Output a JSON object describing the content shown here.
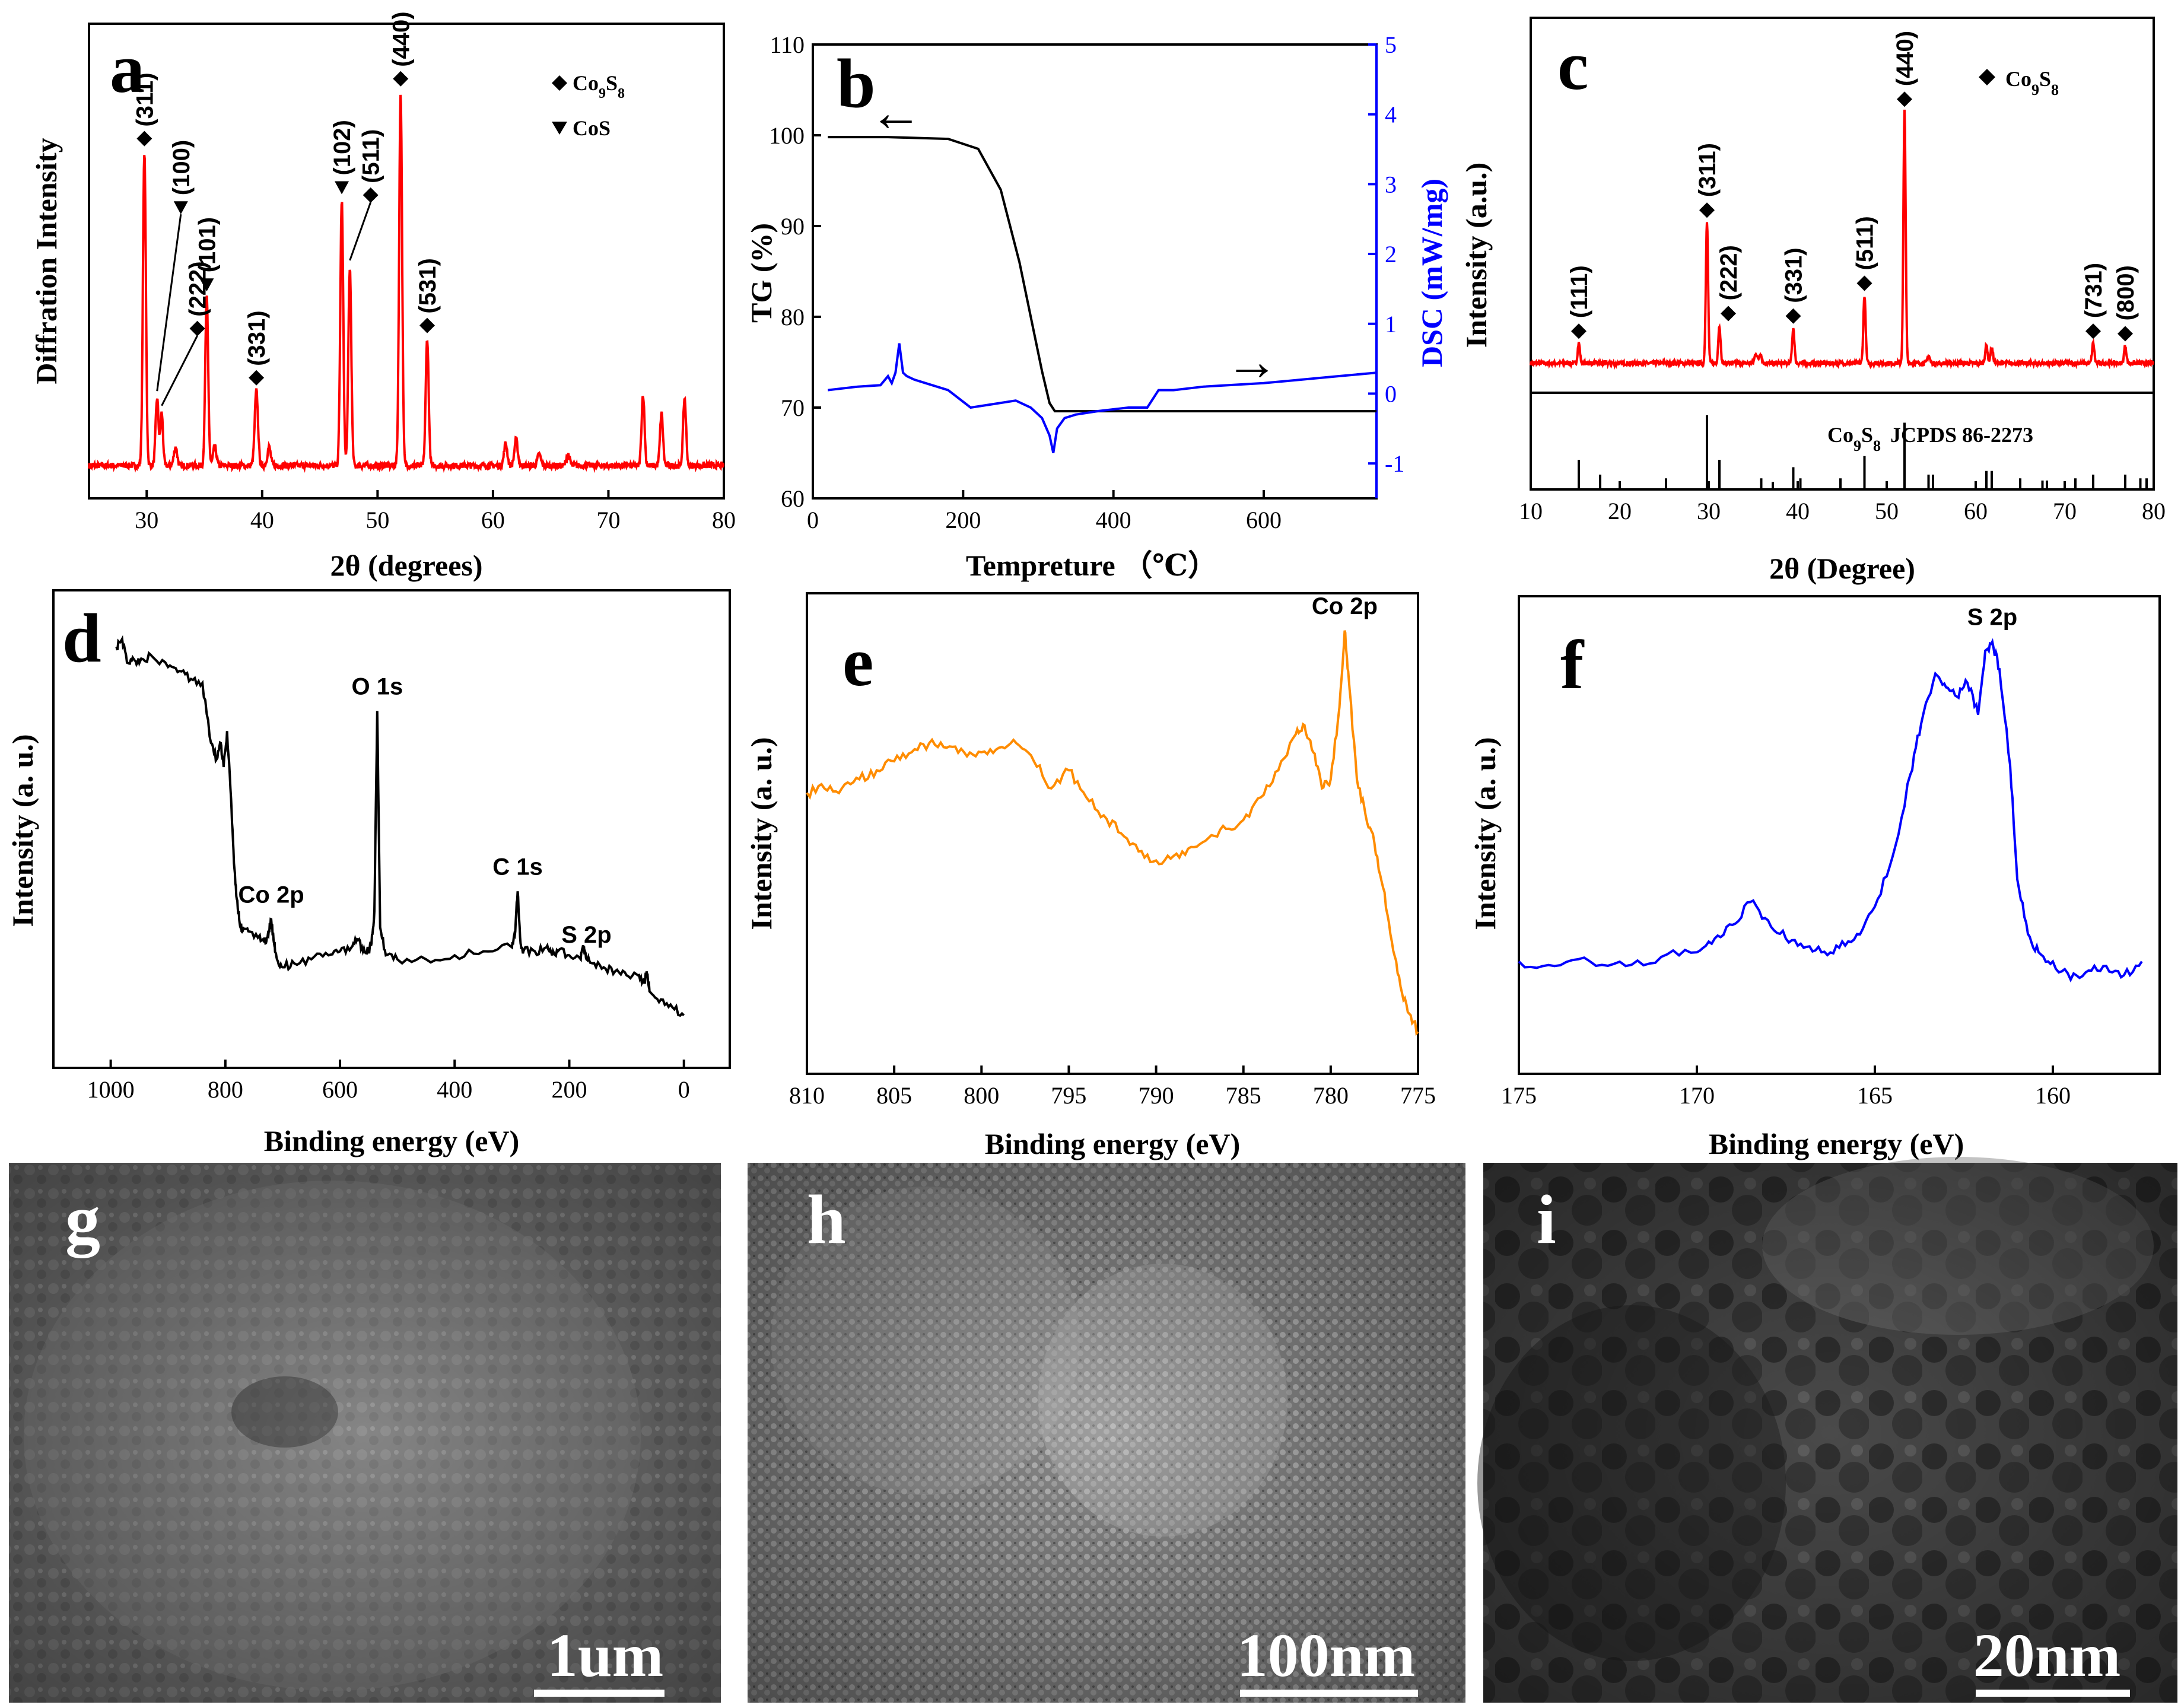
{
  "chart_data": [
    {
      "id": "a",
      "type": "line",
      "panel_label": "a",
      "xlabel": "2θ (degrees)",
      "ylabel": "Diffration Intensity",
      "xlim": [
        25,
        80
      ],
      "xticks": [
        30,
        40,
        50,
        60,
        70,
        80
      ],
      "xtick_labels": [
        "30",
        "40",
        "50",
        "60",
        "70",
        "80"
      ],
      "ylim": [
        0,
        100
      ],
      "series": [
        {
          "name": "XRD",
          "color": "#ff0000",
          "baseline": 4,
          "peaks": [
            [
              29.8,
              84,
              0.18
            ],
            [
              30.9,
              18,
              0.18
            ],
            [
              31.3,
              14,
              0.16
            ],
            [
              32.5,
              5,
              0.2
            ],
            [
              35.2,
              45,
              0.18
            ],
            [
              35.9,
              5,
              0.2
            ],
            [
              39.5,
              20,
              0.2
            ],
            [
              40.6,
              5,
              0.2
            ],
            [
              46.9,
              71,
              0.18
            ],
            [
              47.6,
              53,
              0.18
            ],
            [
              52.0,
              100,
              0.18
            ],
            [
              54.3,
              34,
              0.18
            ],
            [
              61.1,
              6,
              0.2
            ],
            [
              62.0,
              7,
              0.2
            ],
            [
              64.0,
              3,
              0.2
            ],
            [
              66.5,
              3,
              0.2
            ],
            [
              73.0,
              19,
              0.18
            ],
            [
              74.6,
              14,
              0.18
            ],
            [
              76.6,
              18,
              0.18
            ]
          ]
        }
      ],
      "annotations": [
        {
          "text": "(311)",
          "x": 29.8,
          "marker": "diamond"
        },
        {
          "text": "(100)",
          "x": 30.9,
          "marker": "triangle"
        },
        {
          "text": "(222)",
          "x": 31.3,
          "marker": "diamond"
        },
        {
          "text": "(101)",
          "x": 35.2,
          "marker": "triangle"
        },
        {
          "text": "(331)",
          "x": 39.5,
          "marker": "diamond"
        },
        {
          "text": "(102)",
          "x": 46.9,
          "marker": "triangle"
        },
        {
          "text": "(511)",
          "x": 47.6,
          "marker": "diamond"
        },
        {
          "text": "(440)",
          "x": 52.0,
          "marker": "diamond"
        },
        {
          "text": "(531)",
          "x": 54.3,
          "marker": "diamond"
        }
      ],
      "legend": [
        {
          "marker": "diamond",
          "label": "Co",
          "sub1": "9",
          "mid": "S",
          "sub2": "8"
        },
        {
          "marker": "triangle",
          "label": "CoS"
        }
      ]
    },
    {
      "id": "b",
      "type": "line",
      "panel_label": "b",
      "xlabel": "Tempreture （℃）",
      "ylabel": "TG (%)",
      "y2label": "DSC (mW/mg)",
      "xlim": [
        0,
        750
      ],
      "xticks": [
        0,
        200,
        400,
        600
      ],
      "xtick_labels": [
        "0",
        "200",
        "400",
        "600"
      ],
      "ylim": [
        60,
        110
      ],
      "yticks": [
        60,
        70,
        80,
        90,
        100,
        110
      ],
      "ytick_labels": [
        "60",
        "70",
        "80",
        "90",
        "100",
        "110"
      ],
      "y2lim": [
        -1.5,
        5
      ],
      "y2ticks": [
        -1,
        0,
        1,
        2,
        3,
        4,
        5
      ],
      "y2tick_labels": [
        "-1",
        "0",
        "1",
        "2",
        "3",
        "4",
        "5"
      ],
      "series": [
        {
          "name": "TG",
          "axis": "left",
          "color": "#000000",
          "x": [
            20,
            100,
            180,
            220,
            250,
            275,
            290,
            305,
            315,
            322,
            340,
            400,
            500,
            600,
            750
          ],
          "y": [
            99.8,
            99.8,
            99.6,
            98.5,
            94,
            86,
            80,
            74,
            70.5,
            69.6,
            69.6,
            69.6,
            69.6,
            69.6,
            69.6
          ]
        },
        {
          "name": "DSC",
          "axis": "right",
          "color": "#0000ff",
          "x": [
            20,
            60,
            90,
            100,
            105,
            110,
            115,
            120,
            125,
            135,
            150,
            180,
            210,
            240,
            270,
            290,
            305,
            315,
            320,
            325,
            335,
            350,
            380,
            420,
            445,
            460,
            480,
            520,
            600,
            700,
            750
          ],
          "y": [
            0.05,
            0.1,
            0.12,
            0.25,
            0.15,
            0.3,
            0.72,
            0.3,
            0.25,
            0.2,
            0.15,
            0.05,
            -0.2,
            -0.15,
            -0.1,
            -0.2,
            -0.35,
            -0.6,
            -0.85,
            -0.5,
            -0.35,
            -0.3,
            -0.25,
            -0.2,
            -0.2,
            0.05,
            0.05,
            0.1,
            0.15,
            0.25,
            0.3
          ]
        }
      ],
      "annotations": [
        {
          "text": "←",
          "target": "TG"
        },
        {
          "text": "→",
          "target": "DSC"
        }
      ]
    },
    {
      "id": "c",
      "type": "line",
      "panel_label": "c",
      "xlabel": "2θ (Degree)",
      "ylabel": "Intensity (a.u.)",
      "xlim": [
        10,
        80
      ],
      "xticks": [
        10,
        20,
        30,
        40,
        50,
        60,
        70,
        80
      ],
      "xtick_labels": [
        "10",
        "20",
        "30",
        "40",
        "50",
        "60",
        "70",
        "80"
      ],
      "ylim": [
        0,
        100
      ],
      "series": [
        {
          "name": "XRD",
          "color": "#ff0000",
          "baseline": 3,
          "peaks": [
            [
              15.4,
              8,
              0.18
            ],
            [
              29.8,
              56,
              0.18
            ],
            [
              31.2,
              15,
              0.18
            ],
            [
              35.3,
              4,
              0.2
            ],
            [
              35.8,
              4,
              0.2
            ],
            [
              39.5,
              14,
              0.18
            ],
            [
              47.5,
              27,
              0.18
            ],
            [
              52.0,
              100,
              0.18
            ],
            [
              54.7,
              3,
              0.2
            ],
            [
              61.2,
              7,
              0.2
            ],
            [
              61.8,
              6,
              0.2
            ],
            [
              73.2,
              8,
              0.18
            ],
            [
              76.8,
              7,
              0.18
            ]
          ]
        }
      ],
      "reference": {
        "label": "JCPDS 86-2273",
        "formula": {
          "label": "Co",
          "sub1": "9",
          "mid": "S",
          "sub2": "8"
        },
        "positions": [
          15.4,
          17.8,
          25.2,
          29.8,
          31.2,
          35.9,
          37.2,
          39.5,
          40.3,
          44.8,
          47.5,
          52.0,
          54.7,
          55.2,
          61.2,
          61.8,
          65.0,
          67.5,
          68.0,
          71.2,
          73.2,
          76.8,
          78.5,
          79.2
        ],
        "heights": [
          0.4,
          0.2,
          0.15,
          1.0,
          0.4,
          0.15,
          0.1,
          0.3,
          0.15,
          0.15,
          0.45,
          0.9,
          0.2,
          0.2,
          0.25,
          0.25,
          0.15,
          0.12,
          0.12,
          0.15,
          0.2,
          0.2,
          0.15,
          0.15
        ]
      },
      "annotations": [
        {
          "text": "(111)",
          "x": 15.4
        },
        {
          "text": "(311)",
          "x": 29.8
        },
        {
          "text": "(222)",
          "x": 31.2
        },
        {
          "text": "(331)",
          "x": 39.5
        },
        {
          "text": "(511)",
          "x": 47.5
        },
        {
          "text": "(440)",
          "x": 52.0
        },
        {
          "text": "(731)",
          "x": 73.2
        },
        {
          "text": "(800)",
          "x": 76.8
        }
      ],
      "legend": [
        {
          "marker": "diamond",
          "label": "Co",
          "sub1": "9",
          "mid": "S",
          "sub2": "8"
        }
      ]
    },
    {
      "id": "d",
      "type": "line",
      "panel_label": "d",
      "xlabel": "Binding energy (eV)",
      "ylabel": "Intensity (a. u.)",
      "xlim": [
        1100,
        -80
      ],
      "xticks": [
        1000,
        800,
        600,
        400,
        200,
        0
      ],
      "xtick_labels": [
        "1000",
        "800",
        "600",
        "400",
        "200",
        "0"
      ],
      "ylim": [
        0,
        100
      ],
      "series": [
        {
          "name": "XPS survey",
          "color": "#000000",
          "x": [
            990,
            980,
            970,
            960,
            950,
            930,
            900,
            880,
            860,
            840,
            825,
            815,
            808,
            803,
            797,
            790,
            785,
            780,
            775,
            770,
            760,
            740,
            730,
            725,
            720,
            715,
            710,
            700,
            680,
            650,
            620,
            600,
            580,
            570,
            560,
            550,
            545,
            540,
            535,
            530,
            520,
            500,
            450,
            400,
            350,
            300,
            295,
            290,
            285,
            280,
            260,
            240,
            230,
            220,
            200,
            180,
            175,
            170,
            160,
            140,
            120,
            100,
            80,
            70,
            65,
            60,
            40,
            20,
            0
          ],
          "y": [
            94,
            96,
            90,
            91,
            90,
            92,
            89,
            88,
            86,
            85,
            70,
            66,
            70,
            64,
            73,
            56,
            40,
            31,
            25,
            23,
            23,
            22,
            20,
            22,
            26,
            20,
            16,
            14,
            15,
            16,
            17,
            18,
            19,
            21,
            18,
            18,
            20,
            28,
            78,
            24,
            17,
            16,
            16,
            17,
            18,
            19,
            22,
            33,
            20,
            18,
            18,
            19,
            17,
            18,
            17,
            16,
            19,
            16,
            15,
            14,
            13,
            12,
            12,
            10,
            13,
            8,
            6,
            4,
            2
          ]
        }
      ],
      "annotations": [
        {
          "text": "Co 2p",
          "x": 720
        },
        {
          "text": "O 1s",
          "x": 535
        },
        {
          "text": "C 1s",
          "x": 290
        },
        {
          "text": "S 2p",
          "x": 170
        }
      ]
    },
    {
      "id": "e",
      "type": "line",
      "panel_label": "e",
      "xlabel": "Binding energy (eV)",
      "ylabel": "Intensity (a. u.)",
      "xlim": [
        810,
        775
      ],
      "xticks": [
        810,
        805,
        800,
        795,
        790,
        785,
        780,
        775
      ],
      "xtick_labels": [
        "810",
        "805",
        "800",
        "795",
        "790",
        "785",
        "780",
        "775"
      ],
      "ylim": [
        0,
        100
      ],
      "series": [
        {
          "name": "Co 2p",
          "color": "#ff8c00",
          "x": [
            810,
            809,
            808,
            807,
            806,
            805,
            804,
            803,
            802,
            801,
            800,
            799,
            798,
            797,
            796,
            795,
            794,
            793,
            792,
            791,
            790,
            789,
            788,
            787,
            786,
            785,
            784,
            783,
            782,
            781.5,
            781,
            780.5,
            780,
            779.5,
            779.2,
            779,
            778.5,
            778,
            777.5,
            777,
            776.5,
            776,
            775.5,
            775
          ],
          "y": [
            61,
            62,
            62,
            64,
            66,
            68,
            70,
            72,
            71,
            70,
            70,
            71,
            72,
            68,
            62,
            66,
            60,
            56,
            52,
            48,
            46,
            47,
            49,
            51,
            53,
            55,
            60,
            66,
            74,
            76,
            70,
            62,
            64,
            80,
            97,
            88,
            64,
            56,
            50,
            40,
            28,
            18,
            12,
            8
          ]
        }
      ],
      "annotations": [
        {
          "text": "Co 2p",
          "x": 779.2
        }
      ]
    },
    {
      "id": "f",
      "type": "line",
      "panel_label": "f",
      "xlabel": "Binding energy (eV)",
      "ylabel": "Intensity (a. u.)",
      "xlim": [
        175,
        157
      ],
      "xticks": [
        175,
        170,
        165,
        160
      ],
      "xtick_labels": [
        "175",
        "170",
        "165",
        "160"
      ],
      "ylim": [
        0,
        100
      ],
      "series": [
        {
          "name": "S 2p",
          "color": "#0000ff",
          "x": [
            175,
            174,
            173,
            172,
            171,
            170,
            169.5,
            169,
            168.5,
            168,
            167.5,
            167,
            166.5,
            166,
            165.5,
            165,
            164.5,
            164,
            163.7,
            163.3,
            163,
            162.7,
            162.4,
            162.1,
            161.9,
            161.7,
            161.5,
            161.2,
            161,
            160.7,
            160.4,
            160,
            159.5,
            159,
            158.5,
            158,
            157.5
          ],
          "y": [
            22,
            21,
            22,
            21,
            23,
            24,
            27,
            30,
            35,
            31,
            27,
            25,
            24,
            25,
            28,
            34,
            45,
            63,
            74,
            85,
            82,
            80,
            83,
            76,
            90,
            92,
            86,
            65,
            40,
            28,
            24,
            22,
            18,
            20,
            21,
            19,
            22
          ]
        }
      ],
      "annotations": [
        {
          "text": "S 2p",
          "x": 161.7
        }
      ]
    }
  ],
  "micrographs": {
    "g": {
      "label": "g",
      "scalebar": "1um"
    },
    "h": {
      "label": "h",
      "scalebar": "100nm"
    },
    "i": {
      "label": "i",
      "scalebar": "20nm"
    }
  },
  "text": {
    "c_formula": "Co",
    "c_sub1": "9",
    "c_S": "S",
    "c_sub2": "8",
    "c_ref_label": "JCPDS 86-2273",
    "leg_co": "Co",
    "leg_9": "9",
    "leg_s": "S",
    "leg_8": "8",
    "leg_cos": "CoS",
    "a_label": "a",
    "b_label": "b",
    "c_label": "c",
    "d_label": "d",
    "e_label": "e",
    "f_label": "f",
    "a_xlabel": "2θ (degrees)",
    "a_ylabel": "Diffration Intensity",
    "b_xlabel": "Tempreture （℃）",
    "b_ylabel": "TG (%)",
    "b_y2label": "DSC (mW/mg)",
    "c_xlabel": "2θ (Degree)",
    "c_ylabel": "Intensity (a.u.)",
    "d_xlabel": "Binding energy (eV)",
    "d_ylabel": "Intensity (a. u.)",
    "e_xlabel": "Binding energy (eV)",
    "e_ylabel": "Intensity (a. u.)",
    "f_xlabel": "Binding energy (eV)",
    "f_ylabel": "Intensity (a. u.)",
    "b_arrow_left": "←",
    "b_arrow_right": "→",
    "g_label": "g",
    "h_label": "h",
    "i_label": "i",
    "g_scale": "1um",
    "h_scale": "100nm",
    "i_scale": "20nm"
  }
}
